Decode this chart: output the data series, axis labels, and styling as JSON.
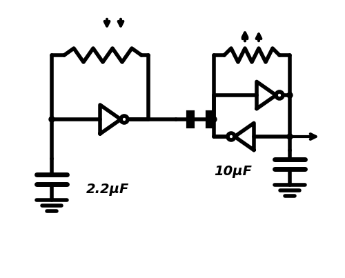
{
  "bg_color": "#ffffff",
  "line_color": "#000000",
  "line_width": 4.0,
  "fig_width": 5.0,
  "fig_height": 4.03,
  "dpi": 100,
  "label_22uF": "2.2μF",
  "label_10uF": "10μF",
  "font_size": 14
}
